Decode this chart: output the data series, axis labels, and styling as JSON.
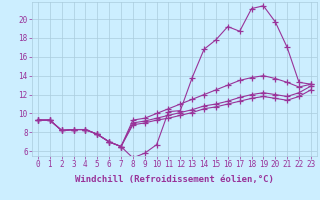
{
  "background_color": "#cceeff",
  "grid_color": "#aaccdd",
  "line_color": "#993399",
  "marker": "+",
  "markersize": 4,
  "linewidth": 0.8,
  "xlabel": "Windchill (Refroidissement éolien,°C)",
  "xlabel_fontsize": 6.5,
  "tick_fontsize": 5.5,
  "xlim": [
    -0.5,
    23.5
  ],
  "ylim": [
    5.5,
    21.8
  ],
  "yticks": [
    6,
    8,
    10,
    12,
    14,
    16,
    18,
    20
  ],
  "xticks": [
    0,
    1,
    2,
    3,
    4,
    5,
    6,
    7,
    8,
    9,
    10,
    11,
    12,
    13,
    14,
    15,
    16,
    17,
    18,
    19,
    20,
    21,
    22,
    23
  ],
  "s1_y": [
    9.3,
    9.3,
    8.2,
    8.3,
    8.3,
    7.8,
    7.0,
    6.5,
    5.3,
    5.8,
    6.7,
    10.2,
    10.3,
    13.8,
    16.8,
    17.8,
    19.2,
    18.7,
    21.1,
    21.4,
    19.7,
    17.0,
    13.3,
    13.1
  ],
  "s2_y": [
    9.3,
    9.3,
    8.2,
    8.3,
    8.3,
    7.8,
    7.0,
    6.5,
    9.3,
    9.5,
    10.0,
    10.5,
    11.0,
    11.5,
    12.0,
    12.5,
    13.0,
    13.5,
    13.8,
    14.0,
    13.7,
    13.3,
    12.8,
    13.1
  ],
  "s3_y": [
    9.3,
    9.3,
    8.2,
    8.3,
    8.3,
    7.8,
    7.0,
    6.5,
    9.0,
    9.2,
    9.5,
    9.8,
    10.1,
    10.4,
    10.8,
    11.0,
    11.3,
    11.7,
    12.0,
    12.2,
    12.0,
    11.8,
    12.2,
    12.9
  ],
  "s4_y": [
    9.3,
    9.3,
    8.2,
    8.3,
    8.3,
    7.8,
    7.0,
    6.5,
    8.8,
    9.0,
    9.3,
    9.5,
    9.8,
    10.1,
    10.5,
    10.7,
    11.0,
    11.3,
    11.6,
    11.8,
    11.6,
    11.4,
    11.8,
    12.5
  ]
}
